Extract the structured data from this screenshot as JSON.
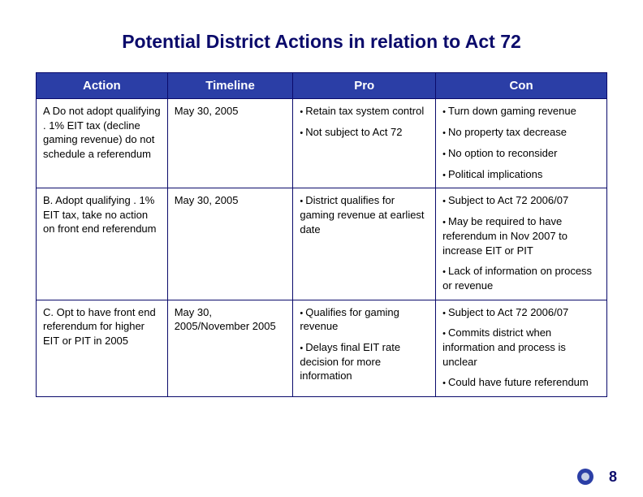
{
  "title": "Potential District Actions in relation to Act 72",
  "columns": [
    "Action",
    "Timeline",
    "Pro",
    "Con"
  ],
  "rows": [
    {
      "action": "A  Do not adopt qualifying . 1% EIT tax (decline gaming revenue) do not schedule a referendum",
      "timeline": "May 30, 2005",
      "pro": [
        "Retain tax system control",
        "Not subject to Act 72"
      ],
      "con": [
        "Turn down gaming revenue",
        "No property tax decrease",
        "No option to reconsider",
        "Political implications"
      ]
    },
    {
      "action": "B. Adopt qualifying . 1% EIT tax, take no action on front end referendum",
      "timeline": "May 30, 2005",
      "pro": [
        "District qualifies for gaming revenue at earliest date"
      ],
      "con": [
        "Subject to Act 72 2006/07",
        "May be required to have referendum in Nov 2007 to increase EIT or PIT",
        "Lack of information on process or revenue"
      ]
    },
    {
      "action": "C. Opt to have front end referendum for higher EIT or PIT in 2005",
      "timeline": "May 30, 2005/November 2005",
      "pro": [
        "Qualifies for gaming revenue",
        "Delays final EIT rate decision for more information"
      ],
      "con": [
        "Subject to Act 72 2006/07",
        "Commits district when information and process is unclear",
        "Could have future referendum"
      ]
    }
  ],
  "page_number": "8",
  "colors": {
    "title": "#0b0b6b",
    "header_bg": "#2b3ea6",
    "header_text": "#ffffff",
    "border": "#0b0b6b",
    "text": "#000000",
    "page_num": "#0b0b6b"
  },
  "logo": {
    "outer": "#2b3ea6",
    "inner": "#c8cfe6"
  }
}
